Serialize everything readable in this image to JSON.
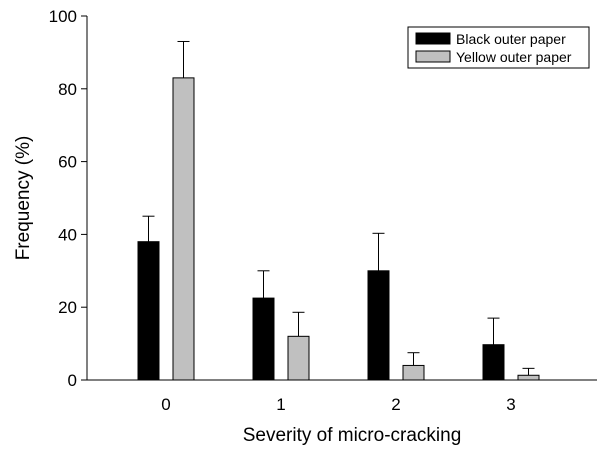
{
  "chart_data": {
    "type": "bar",
    "title": "",
    "xlabel": "Severity of micro-cracking",
    "ylabel": "Frequency (%)",
    "categories": [
      "0",
      "1",
      "2",
      "3"
    ],
    "ylim": [
      0,
      100
    ],
    "yticks": [
      0,
      20,
      40,
      60,
      80,
      100
    ],
    "ytick_labels": [
      "0",
      "20",
      "40",
      "60",
      "80",
      "100"
    ],
    "legend_position": "top-right",
    "grid": false,
    "series": [
      {
        "name": "Black outer paper",
        "color": "#000000",
        "values": [
          38,
          22.5,
          30,
          9.7
        ],
        "errors": [
          7,
          7.5,
          10.3,
          7.3
        ]
      },
      {
        "name": "Yellow outer paper",
        "color": "#c0c0c0",
        "values": [
          83,
          12,
          4,
          1.3
        ],
        "errors": [
          10,
          6.6,
          3.5,
          1.9
        ]
      }
    ]
  }
}
